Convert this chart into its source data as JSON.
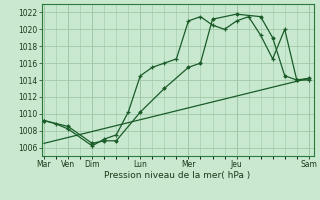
{
  "background_color": "#c8e8d0",
  "grid_color": "#a0c8a8",
  "line_color": "#1a5c28",
  "xlabel": "Pression niveau de la mer( hPa )",
  "ylim": [
    1005.0,
    1023.0
  ],
  "yticks": [
    1006,
    1008,
    1010,
    1012,
    1014,
    1016,
    1018,
    1020,
    1022
  ],
  "xtick_major_pos": [
    0,
    1,
    2,
    4,
    6,
    8,
    11
  ],
  "xtick_major_lab": [
    "Mar",
    "Ven",
    "Dim",
    "Lun",
    "Mer",
    "Jeu",
    "Sam"
  ],
  "xlim": [
    -0.1,
    11.2
  ],
  "series1_x": [
    0,
    0.5,
    1,
    2,
    2.5,
    3,
    3.5,
    4,
    4.5,
    5,
    5.5,
    6,
    6.5,
    7,
    7.5,
    8,
    8.5,
    9,
    9.5,
    10,
    10.5,
    11
  ],
  "series1_y": [
    1009.2,
    1008.8,
    1008.2,
    1006.2,
    1007.0,
    1007.5,
    1010.2,
    1014.5,
    1015.5,
    1016.0,
    1016.5,
    1021.0,
    1021.5,
    1020.5,
    1020.0,
    1021.0,
    1021.5,
    1019.3,
    1016.5,
    1020.0,
    1014.0,
    1014.0
  ],
  "series2_x": [
    0,
    1,
    2,
    2.5,
    3,
    4,
    5,
    6,
    6.5,
    7,
    8,
    9,
    9.5,
    10,
    10.5,
    11
  ],
  "series2_y": [
    1009.2,
    1008.5,
    1006.5,
    1006.8,
    1006.8,
    1010.2,
    1013.0,
    1015.5,
    1016.0,
    1021.2,
    1021.8,
    1021.5,
    1019.0,
    1014.5,
    1014.0,
    1014.2
  ],
  "series3_x": [
    0,
    11
  ],
  "series3_y": [
    1006.5,
    1014.2
  ]
}
